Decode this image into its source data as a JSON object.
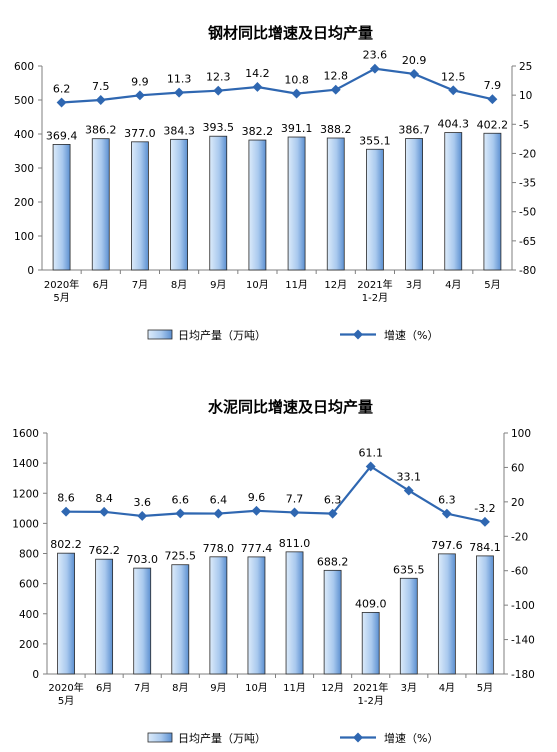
{
  "chart_data": [
    {
      "type": "bar",
      "title": "钢材同比增速及日均产量",
      "categories": [
        "2020年\n5月",
        "6月",
        "7月",
        "8月",
        "9月",
        "10月",
        "11月",
        "12月",
        "2021年\n1-2月",
        "3月",
        "4月",
        "5月"
      ],
      "series": [
        {
          "name": "日均产量（万吨）",
          "type": "bar",
          "axis": "left",
          "values": [
            369.4,
            386.2,
            377.0,
            384.3,
            393.5,
            382.2,
            391.1,
            388.2,
            355.1,
            386.7,
            404.3,
            402.2
          ],
          "labels": [
            "369.4",
            "386.2",
            "377.0",
            "384.3",
            "393.5",
            "382.2",
            "391.1",
            "388.2",
            "355.1",
            "386.7",
            "404.3",
            "402.2"
          ]
        },
        {
          "name": "增速（%）",
          "type": "line",
          "axis": "right",
          "values": [
            6.2,
            7.5,
            9.9,
            11.3,
            12.3,
            14.2,
            10.8,
            12.8,
            23.6,
            20.9,
            12.5,
            7.9
          ],
          "labels": [
            "6.2",
            "7.5",
            "9.9",
            "11.3",
            "12.3",
            "14.2",
            "10.8",
            "12.8",
            "23.6",
            "20.9",
            "12.5",
            "7.9"
          ]
        }
      ],
      "ylim_left": [
        0,
        600
      ],
      "yticks_left": [
        "0",
        "100",
        "200",
        "300",
        "400",
        "500",
        "600"
      ],
      "ylim_right": [
        -80,
        25
      ],
      "yticks_right": [
        "-80",
        "-65",
        "-50",
        "-35",
        "-20",
        "-5",
        "10",
        "25"
      ],
      "legend_position": "bottom",
      "grid": false
    },
    {
      "type": "bar",
      "title": "水泥同比增速及日均产量",
      "categories": [
        "2020年\n5月",
        "6月",
        "7月",
        "8月",
        "9月",
        "10月",
        "11月",
        "12月",
        "2021年\n1-2月",
        "3月",
        "4月",
        "5月"
      ],
      "series": [
        {
          "name": "日均产量（万吨）",
          "type": "bar",
          "axis": "left",
          "values": [
            802.2,
            762.2,
            703.0,
            725.5,
            778.0,
            777.4,
            811.0,
            688.2,
            409.0,
            635.5,
            797.6,
            784.1
          ],
          "labels": [
            "802.2",
            "762.2",
            "703.0",
            "725.5",
            "778.0",
            "777.4",
            "811.0",
            "688.2",
            "409.0",
            "635.5",
            "797.6",
            "784.1"
          ]
        },
        {
          "name": "增速（%）",
          "type": "line",
          "axis": "right",
          "values": [
            8.6,
            8.4,
            3.6,
            6.6,
            6.4,
            9.6,
            7.7,
            6.3,
            61.1,
            33.1,
            6.3,
            -3.2
          ],
          "labels": [
            "8.6",
            "8.4",
            "3.6",
            "6.6",
            "6.4",
            "9.6",
            "7.7",
            "6.3",
            "61.1",
            "33.1",
            "6.3",
            "-3.2"
          ]
        }
      ],
      "ylim_left": [
        0,
        1600
      ],
      "yticks_left": [
        "0",
        "200",
        "400",
        "600",
        "800",
        "1000",
        "1200",
        "1400",
        "1600"
      ],
      "ylim_right": [
        -180,
        100
      ],
      "yticks_right": [
        "-180",
        "-140",
        "-100",
        "-60",
        "-20",
        "20",
        "60",
        "100"
      ],
      "legend_position": "bottom",
      "grid": false
    }
  ],
  "colors": {
    "bar_fill_light": "#dcebfa",
    "bar_fill_dark": "#5b8fd0",
    "bar_stroke": "#2a2a2a",
    "line": "#2f67b1",
    "axis": "#7f7f7f"
  }
}
